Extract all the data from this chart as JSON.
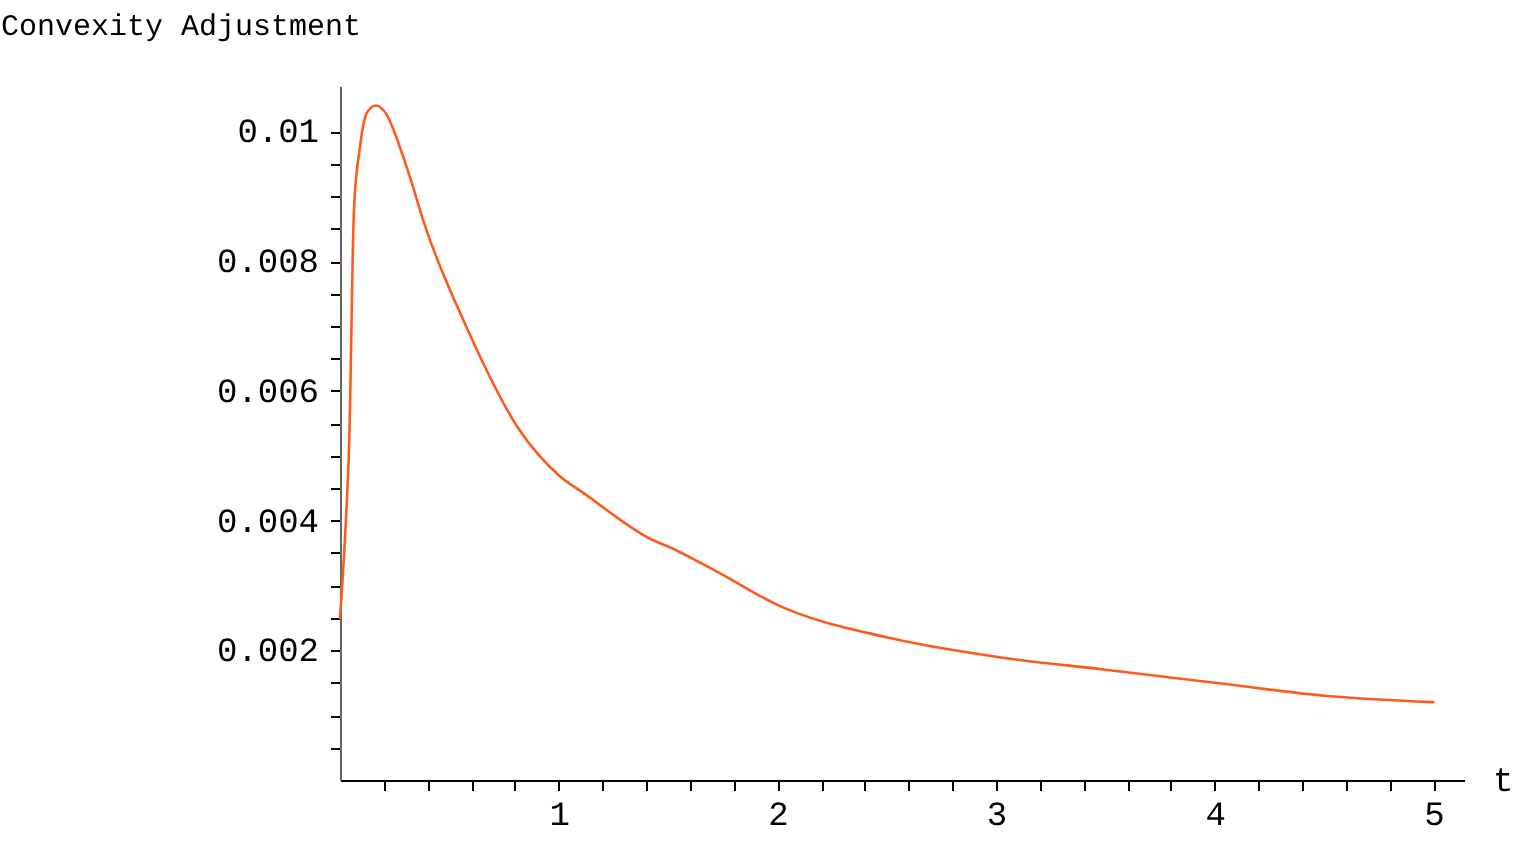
{
  "chart_data": {
    "type": "line",
    "ylabel": "Convexity Adjustment",
    "xlabel": "t",
    "xlim": [
      0,
      5.14
    ],
    "ylim": [
      0,
      0.0107
    ],
    "xticks": [
      {
        "value": 0.2,
        "label": null
      },
      {
        "value": 0.4,
        "label": null
      },
      {
        "value": 0.6,
        "label": null
      },
      {
        "value": 0.8,
        "label": null
      },
      1,
      {
        "value": 1.2,
        "label": null
      },
      {
        "value": 1.4,
        "label": null
      },
      {
        "value": 1.6,
        "label": null
      },
      {
        "value": 1.8,
        "label": null
      },
      2,
      {
        "value": 2.2,
        "label": null
      },
      {
        "value": 2.4,
        "label": null
      },
      {
        "value": 2.6,
        "label": null
      },
      {
        "value": 2.8,
        "label": null
      },
      3,
      {
        "value": 3.2,
        "label": null
      },
      {
        "value": 3.4,
        "label": null
      },
      {
        "value": 3.6,
        "label": null
      },
      {
        "value": 3.8,
        "label": null
      },
      4,
      {
        "value": 4.2,
        "label": null
      },
      {
        "value": 4.4,
        "label": null
      },
      {
        "value": 4.6,
        "label": null
      },
      {
        "value": 4.8,
        "label": null
      },
      5
    ],
    "yticks": [
      {
        "value": 0.0005,
        "label": null
      },
      {
        "value": 0.001,
        "label": null
      },
      {
        "value": 0.0015,
        "label": null
      },
      0.002,
      {
        "value": 0.0025,
        "label": null
      },
      {
        "value": 0.003,
        "label": null
      },
      {
        "value": 0.0035,
        "label": null
      },
      0.004,
      {
        "value": 0.0045,
        "label": null
      },
      {
        "value": 0.005,
        "label": null
      },
      {
        "value": 0.0055,
        "label": null
      },
      0.006,
      {
        "value": 0.0065,
        "label": null
      },
      {
        "value": 0.007,
        "label": null
      },
      {
        "value": 0.0075,
        "label": null
      },
      0.008,
      {
        "value": 0.0085,
        "label": null
      },
      {
        "value": 0.009,
        "label": null
      },
      {
        "value": 0.0095,
        "label": null
      },
      0.01
    ],
    "grid": false,
    "marker": "none",
    "line_style": "solid",
    "series": [
      {
        "color": "#ff5a1e",
        "x": [
          0,
          0.027,
          0.042,
          0.064,
          0.089,
          0.125,
          0.165,
          0.205,
          0.3,
          0.393,
          0.576,
          0.82,
          1.0,
          1.124,
          1.43,
          1.5,
          1.73,
          2,
          2.5,
          3,
          3.5,
          4,
          4.5,
          5
        ],
        "values": [
          0.0025,
          0.004,
          0.0052,
          0.0088,
          0.0097,
          0.0103,
          0.0104,
          0.0103,
          0.0095,
          0.0085,
          0.007,
          0.0054,
          0.0047,
          0.0044,
          0.0037,
          0.0036,
          0.0032,
          0.0027,
          0.0022,
          0.0019,
          0.0017,
          0.0015,
          0.0013,
          0.0012
        ]
      }
    ]
  }
}
